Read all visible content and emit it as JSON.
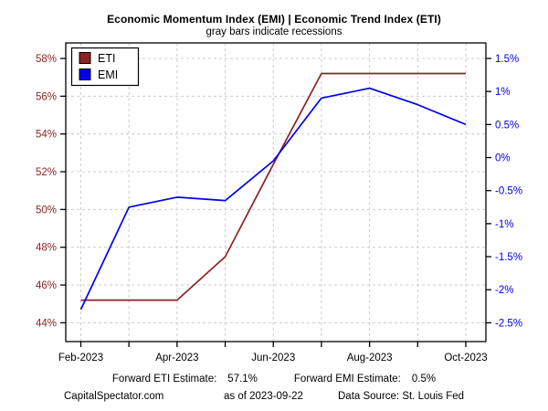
{
  "chart_data": {
    "type": "line",
    "title": "Economic Momentum Index (EMI) | Economic Trend Index (ETI)",
    "subtitle": "gray bars indicate recessions",
    "x": [
      "Feb-2023",
      "Mar-2023",
      "Apr-2023",
      "May-2023",
      "Jun-2023",
      "Jul-2023",
      "Aug-2023",
      "Sep-2023",
      "Oct-2023"
    ],
    "x_axis": {
      "shown_tick_indices": [
        0,
        2,
        4,
        6,
        8
      ],
      "shown_tick_labels": [
        "Feb-2023",
        "Apr-2023",
        "Jun-2023",
        "Aug-2023",
        "Oct-2023"
      ]
    },
    "left_axis": {
      "series": "ETI",
      "min": 44,
      "max": 58,
      "ticks": [
        58,
        56,
        54,
        52,
        50,
        48,
        46,
        44
      ],
      "tick_labels": [
        "58%",
        "56%",
        "54%",
        "52%",
        "50%",
        "48%",
        "46%",
        "44%"
      ],
      "color": "#8B2323"
    },
    "right_axis": {
      "series": "EMI",
      "min": -2.5,
      "max": 1.5,
      "ticks": [
        1.5,
        1,
        0.5,
        0,
        -0.5,
        -1,
        -1.5,
        -2,
        -2.5
      ],
      "tick_labels": [
        "1.5%",
        "1%",
        "0.5%",
        "0%",
        "-0.5%",
        "-1%",
        "-1.5%",
        "-2%",
        "-2.5%"
      ],
      "color": "#0000EE"
    },
    "series": [
      {
        "name": "ETI",
        "axis": "left",
        "color": "#8B2323",
        "values": [
          45.2,
          45.2,
          45.2,
          47.5,
          52.4,
          57.2,
          57.2,
          57.2,
          57.2
        ]
      },
      {
        "name": "EMI",
        "axis": "right",
        "color": "#0000EE",
        "values": [
          -2.3,
          -0.75,
          -0.6,
          -0.65,
          -0.05,
          0.9,
          1.05,
          0.8,
          0.5
        ]
      }
    ],
    "legend": {
      "position": "top-left",
      "items": [
        "ETI",
        "EMI"
      ]
    },
    "grid": true,
    "grid_color": "#CCCCCC"
  },
  "annotations": {
    "forward_eti_label": "Forward ETI Estimate:",
    "forward_eti_value": "57.1%",
    "forward_emi_label": "Forward EMI Estimate:",
    "forward_emi_value": "0.5%"
  },
  "footer": {
    "site": "CapitalSpectator.com",
    "as_of": "as of 2023-09-22",
    "source": "Data Source: St. Louis Fed"
  }
}
